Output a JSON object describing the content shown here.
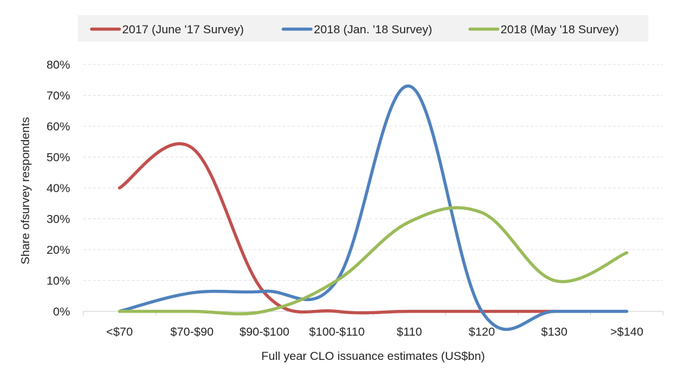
{
  "chart_data": {
    "type": "line",
    "smooth": true,
    "categories": [
      "<$70",
      "$70-$90",
      "$90-$100",
      "$100-$110",
      "$110",
      "$120",
      "$130",
      ">$140"
    ],
    "series": [
      {
        "name": "2017 (June '17 Survey)",
        "color": "#c0504d",
        "values": [
          40,
          53,
          6,
          0,
          0,
          0,
          0,
          null
        ]
      },
      {
        "name": "2018 (Jan. '18 Survey)",
        "color": "#4f81bd",
        "values": [
          0,
          6,
          6.5,
          10,
          73,
          0,
          0,
          0
        ]
      },
      {
        "name": "2018 (May '18 Survey)",
        "color": "#9bbb59",
        "values": [
          0,
          0,
          0,
          10,
          29,
          32,
          10,
          19
        ]
      }
    ],
    "xlabel": "Full year CLO issuance estimates (US$bn)",
    "ylabel": "Share ofsurvey  respondents",
    "ylim": [
      0,
      80
    ],
    "yticks": [
      "0%",
      "10%",
      "20%",
      "30%",
      "40%",
      "50%",
      "60%",
      "70%",
      "80%"
    ],
    "grid": true,
    "legend_position": "top"
  }
}
